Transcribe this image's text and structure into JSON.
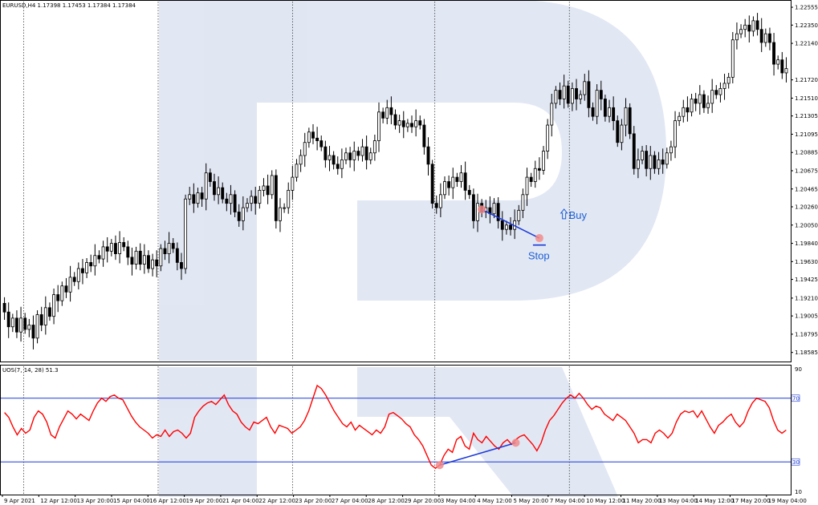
{
  "main_header": "EURUSD,H4  1.17398 1.17453 1.17384 1.17384",
  "indicator_header": "UOS(7, 14, 28) 51.3",
  "annotations": {
    "buy": "Buy",
    "stop": "Stop"
  },
  "colors": {
    "candle": "#000000",
    "uos_line": "#ff0000",
    "level_line": "#1f3bd6",
    "trend_line": "#1f3bd6",
    "marker": "#f28b8b",
    "watermark": "#c9d3ea",
    "grid": "#000000"
  },
  "chart_data": [
    {
      "type": "candlestick",
      "title": "",
      "symbol": "EURUSD",
      "timeframe": "H4",
      "header_values": {
        "open": 1.17398,
        "high": 1.17453,
        "low": 1.17384,
        "close": 1.17384
      },
      "ylim": [
        1.1849,
        1.2262
      ],
      "y_ticks": [
        "1.22555",
        "1.22350",
        "1.22140",
        "1.21720",
        "1.21510",
        "1.21305",
        "1.21095",
        "1.20885",
        "1.20675",
        "1.20465",
        "1.20260",
        "1.20050",
        "1.19840",
        "1.19630",
        "1.19425",
        "1.19210",
        "1.19005",
        "1.18795",
        "1.18585"
      ],
      "x_ticks": [
        "9 Apr 2021",
        "12 Apr 12:00",
        "13 Apr 20:00",
        "15 Apr 04:00",
        "16 Apr 12:00",
        "19 Apr 20:00",
        "21 Apr 04:00",
        "22 Apr 12:00",
        "23 Apr 20:00",
        "27 Apr 04:00",
        "28 Apr 12:00",
        "29 Apr 20:00",
        "3 May 04:00",
        "4 May 12:00",
        "5 May 20:00",
        "7 May 04:00",
        "10 May 12:00",
        "11 May 20:00",
        "13 May 04:00",
        "14 May 12:00",
        "17 May 20:00",
        "19 May 04:00"
      ],
      "closes": [
        1.1905,
        1.1888,
        1.1898,
        1.1882,
        1.1898,
        1.1885,
        1.189,
        1.1875,
        1.1902,
        1.189,
        1.191,
        1.19,
        1.1925,
        1.1918,
        1.1935,
        1.1928,
        1.1945,
        1.194,
        1.1955,
        1.195,
        1.1962,
        1.1958,
        1.197,
        1.1966,
        1.198,
        1.1975,
        1.1984,
        1.1972,
        1.1985,
        1.198,
        1.1968,
        1.196,
        1.1975,
        1.196,
        1.197,
        1.1955,
        1.1965,
        1.1958,
        1.1978,
        1.1972,
        1.1984,
        1.1978,
        1.1962,
        1.1955,
        1.2035,
        1.204,
        1.203,
        1.2042,
        1.2035,
        1.2065,
        1.2055,
        1.204,
        1.2048,
        1.2035,
        1.203,
        1.204,
        1.202,
        1.201,
        1.2025,
        1.203,
        1.2038,
        1.203,
        1.2045,
        1.205,
        1.204,
        1.2062,
        1.201,
        1.2025,
        1.2025,
        1.2045,
        1.206,
        1.2075,
        1.2085,
        1.21,
        1.2112,
        1.2105,
        1.2102,
        1.2095,
        1.208,
        1.2085,
        1.2075,
        1.207,
        1.208,
        1.2088,
        1.208,
        1.209,
        1.2085,
        1.2095,
        1.208,
        1.2088,
        1.2102,
        1.2135,
        1.2128,
        1.214,
        1.2132,
        1.212,
        1.2125,
        1.2118,
        1.2122,
        1.2118,
        1.2125,
        1.212,
        1.2095,
        1.2075,
        1.203,
        1.2025,
        1.204,
        1.2055,
        1.2048,
        1.206,
        1.2055,
        1.2065,
        1.2045,
        1.204,
        1.201,
        1.203,
        1.202,
        1.2025,
        1.2018,
        1.203,
        1.201,
        1.2,
        1.2005,
        1.2,
        1.201,
        1.2022,
        1.204,
        1.206,
        1.2055,
        1.207,
        1.2068,
        1.209,
        1.212,
        1.2145,
        1.216,
        1.215,
        1.2165,
        1.2145,
        1.2162,
        1.215,
        1.2155,
        1.217,
        1.214,
        1.213,
        1.216,
        1.215,
        1.213,
        1.214,
        1.2125,
        1.21,
        1.212,
        1.214,
        1.211,
        1.207,
        1.208,
        1.209,
        1.207,
        1.2085,
        1.207,
        1.208,
        1.2075,
        1.2088,
        1.2095,
        1.2125,
        1.213,
        1.214,
        1.2135,
        1.215,
        1.2145,
        1.2155,
        1.214,
        1.2145,
        1.216,
        1.2155,
        1.2162,
        1.2168,
        1.2175,
        1.2218,
        1.2225,
        1.223,
        1.2235,
        1.2228,
        1.224,
        1.223,
        1.2215,
        1.2225,
        1.2215,
        1.219,
        1.2195,
        1.218,
        1.2185
      ]
    },
    {
      "type": "line",
      "title": "",
      "indicator": "UOS",
      "params": [
        7,
        14,
        28
      ],
      "current_value": 51.3,
      "ylim": [
        10,
        90
      ],
      "y_ticks": [
        "90",
        "10"
      ],
      "levels": [
        70,
        30
      ],
      "level_labels": [
        "70",
        "30"
      ],
      "series": [
        {
          "name": "UOS(7, 14, 28)",
          "values": [
            61,
            58,
            52,
            47,
            51,
            48,
            50,
            58,
            62,
            60,
            55,
            47,
            45,
            52,
            57,
            62,
            60,
            57,
            60,
            58,
            56,
            62,
            67,
            70,
            68,
            71,
            72,
            70,
            69,
            64,
            59,
            55,
            52,
            50,
            48,
            45,
            47,
            46,
            50,
            46,
            49,
            50,
            48,
            45,
            48,
            58,
            62,
            65,
            67,
            68,
            66,
            69,
            72,
            66,
            62,
            60,
            55,
            52,
            50,
            55,
            54,
            56,
            58,
            52,
            48,
            53,
            52,
            51,
            48,
            50,
            52,
            56,
            62,
            70,
            78,
            76,
            72,
            67,
            62,
            58,
            54,
            52,
            55,
            50,
            53,
            51,
            49,
            47,
            50,
            48,
            52,
            60,
            61,
            59,
            57,
            54,
            52,
            47,
            44,
            40,
            34,
            28,
            26,
            28,
            34,
            38,
            36,
            44,
            46,
            40,
            38,
            48,
            44,
            42,
            46,
            43,
            40,
            38,
            42,
            44,
            41,
            44,
            46,
            47,
            44,
            41,
            37,
            42,
            50,
            56,
            59,
            63,
            67,
            70,
            72,
            70,
            73,
            70,
            66,
            63,
            65,
            64,
            60,
            58,
            56,
            60,
            58,
            56,
            52,
            48,
            42,
            44,
            44,
            42,
            48,
            50,
            48,
            45,
            48,
            55,
            60,
            62,
            61,
            62,
            58,
            62,
            57,
            52,
            48,
            53,
            55,
            58,
            60,
            55,
            52,
            55,
            62,
            67,
            70,
            69,
            68,
            64,
            56,
            50,
            48,
            50
          ]
        }
      ]
    }
  ]
}
